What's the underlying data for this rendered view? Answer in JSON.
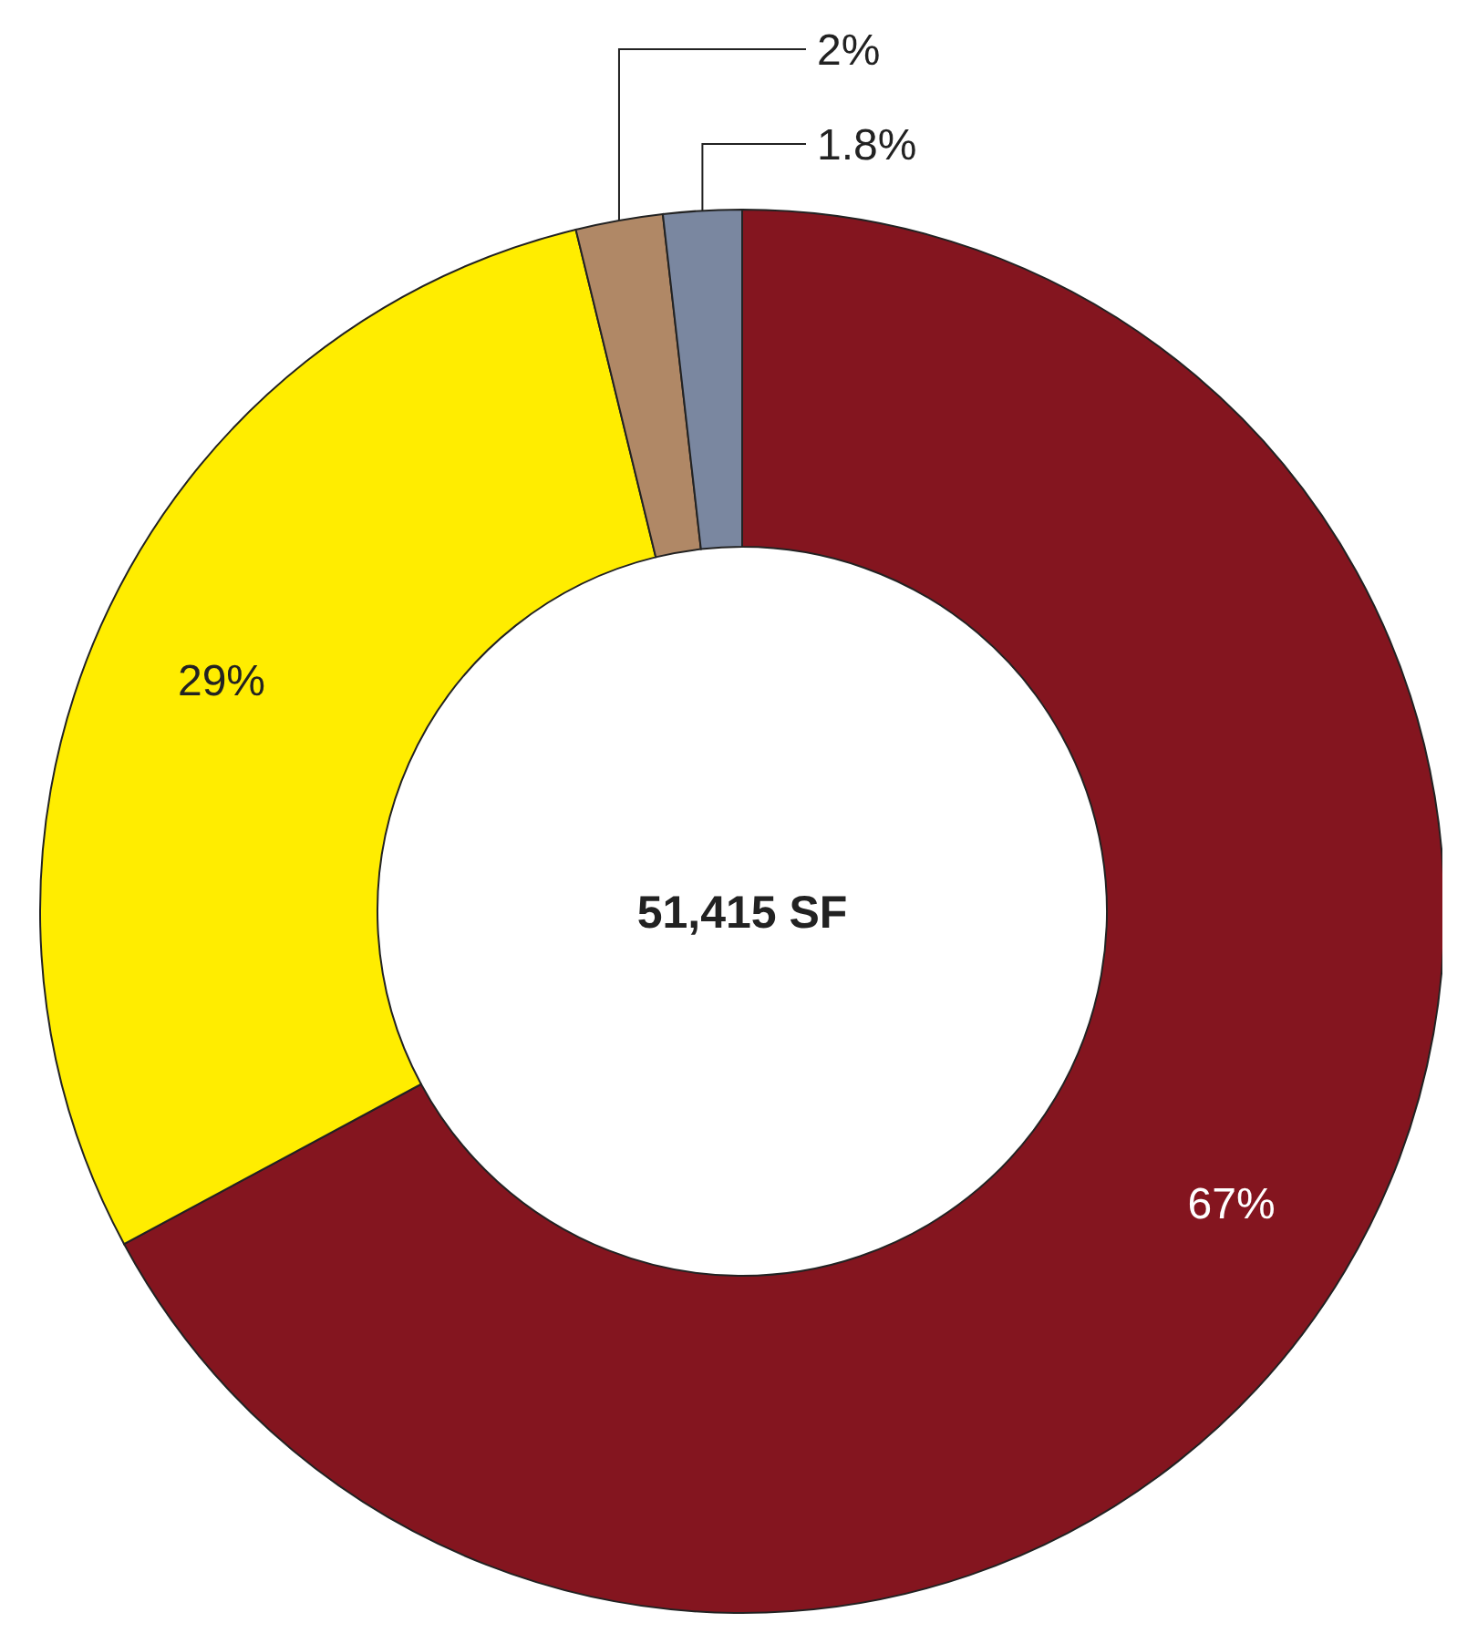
{
  "chart_data": {
    "type": "donut",
    "categories": [
      null,
      null,
      null,
      null
    ],
    "values": [
      67,
      29,
      2,
      1.8
    ],
    "colors": [
      "#84151f",
      "#ffed00",
      "#b08866",
      "#7a87a0"
    ],
    "value_labels": [
      "67%",
      "29%",
      "2%",
      "1.8%"
    ],
    "annotations": [
      "51,415 SF"
    ]
  }
}
